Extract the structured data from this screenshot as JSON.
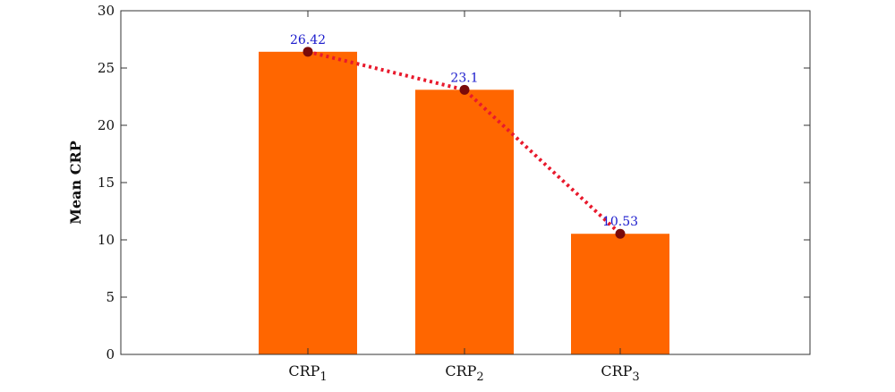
{
  "chart_data": {
    "type": "bar",
    "title": "",
    "xlabel": "",
    "ylabel": "Mean CRP",
    "ylim": [
      0,
      30
    ],
    "yticks": [
      0,
      5,
      10,
      15,
      20,
      25,
      30
    ],
    "grid": false,
    "legend": "none",
    "categories": [
      {
        "base": "CRP",
        "sub": "1"
      },
      {
        "base": "CRP",
        "sub": "2"
      },
      {
        "base": "CRP",
        "sub": "3"
      }
    ],
    "values": [
      26.42,
      23.1,
      10.53
    ],
    "value_labels": [
      "26.42",
      "23.1",
      "10.53"
    ],
    "overlay_line": {
      "style": "dotted",
      "values": [
        26.42,
        23.1,
        10.53
      ]
    },
    "colors": {
      "bar": "#ff6600",
      "line": "#e8192c",
      "marker": "#7a0a0a",
      "data_label": "#1a1acc",
      "axis": "#333333"
    }
  }
}
